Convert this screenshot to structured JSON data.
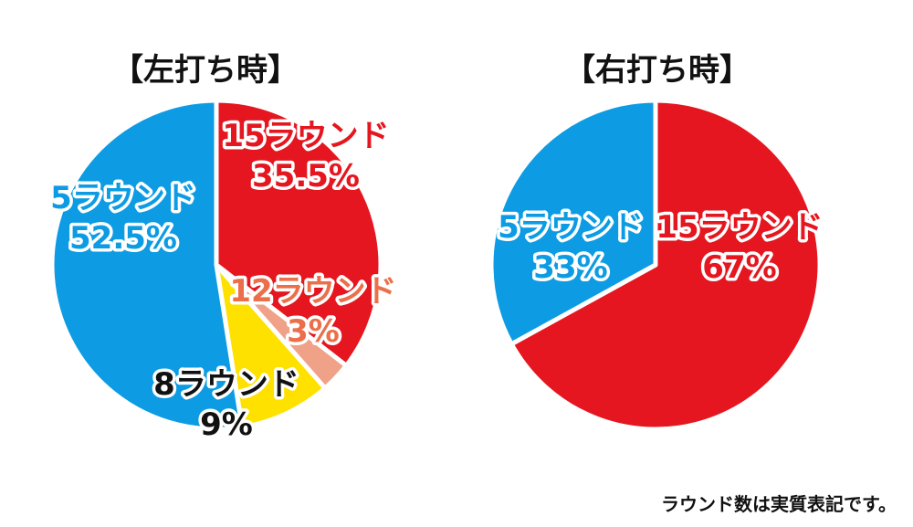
{
  "chart_data": [
    {
      "type": "pie",
      "title": "【左打ち時】",
      "slices": [
        {
          "label": "15ラウンド",
          "value": 35.5,
          "value_label": "35.5%",
          "color": "#e5161f",
          "label_color": "#e5161f"
        },
        {
          "label": "12ラウンド",
          "value": 3,
          "value_label": "3%",
          "color": "#f0a288",
          "label_color": "#eb6f4a"
        },
        {
          "label": "8ラウンド",
          "value": 9,
          "value_label": "9%",
          "color": "#ffe100",
          "label_color": "#111111"
        },
        {
          "label": "5ラウンド",
          "value": 52.5,
          "value_label": "52.5%",
          "color": "#0d9ce3",
          "label_color": "#0d9ce3"
        }
      ]
    },
    {
      "type": "pie",
      "title": "【右打ち時】",
      "slices": [
        {
          "label": "15ラウンド",
          "value": 67,
          "value_label": "67%",
          "color": "#e5161f",
          "label_color": "#e5161f"
        },
        {
          "label": "5ラウンド",
          "value": 33,
          "value_label": "33%",
          "color": "#0d9ce3",
          "label_color": "#0d9ce3"
        }
      ]
    }
  ],
  "footnote": "ラウンド数は実質表記です。"
}
